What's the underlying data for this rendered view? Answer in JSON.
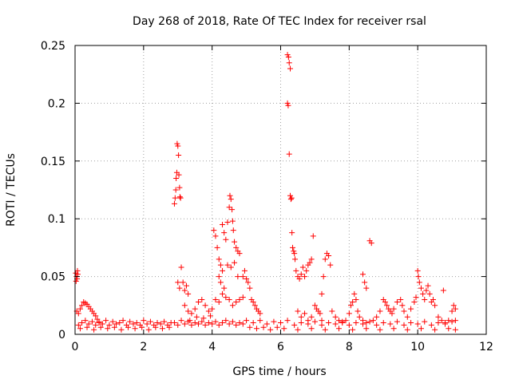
{
  "chart_data": {
    "type": "scatter",
    "title": "Day 268 of 2018, Rate Of TEC Index for receiver rsal",
    "xlabel": "GPS time / hours",
    "ylabel": "ROTI / TECUs",
    "xlim": [
      0,
      12
    ],
    "ylim": [
      0,
      0.25
    ],
    "xticks": [
      0,
      2,
      4,
      6,
      8,
      10,
      12
    ],
    "xtick_labels": [
      "0",
      "2",
      "4",
      "6",
      "8",
      "10",
      "12"
    ],
    "yticks": [
      0,
      0.05,
      0.1,
      0.15,
      0.2,
      0.25
    ],
    "ytick_labels": [
      "0",
      "0.05",
      "0.1",
      "0.15",
      "0.2",
      "0.25"
    ],
    "grid": true,
    "marker": "+",
    "color": "#ff0000",
    "series": [
      {
        "name": "ROTI",
        "points": [
          [
            0.02,
            0.053
          ],
          [
            0.04,
            0.05
          ],
          [
            0.06,
            0.048
          ],
          [
            0.08,
            0.052
          ],
          [
            0.03,
            0.046
          ],
          [
            0.07,
            0.055
          ],
          [
            0.05,
            0.02
          ],
          [
            0.1,
            0.018
          ],
          [
            0.15,
            0.022
          ],
          [
            0.2,
            0.025
          ],
          [
            0.25,
            0.028
          ],
          [
            0.3,
            0.027
          ],
          [
            0.35,
            0.026
          ],
          [
            0.4,
            0.024
          ],
          [
            0.45,
            0.022
          ],
          [
            0.5,
            0.02
          ],
          [
            0.55,
            0.018
          ],
          [
            0.6,
            0.016
          ],
          [
            0.65,
            0.013
          ],
          [
            0.7,
            0.011
          ],
          [
            0.1,
            0.008
          ],
          [
            0.2,
            0.01
          ],
          [
            0.3,
            0.012
          ],
          [
            0.4,
            0.009
          ],
          [
            0.5,
            0.011
          ],
          [
            0.6,
            0.008
          ],
          [
            0.7,
            0.01
          ],
          [
            0.8,
            0.009
          ],
          [
            0.9,
            0.012
          ],
          [
            1.0,
            0.008
          ],
          [
            1.1,
            0.011
          ],
          [
            1.2,
            0.009
          ],
          [
            1.3,
            0.01
          ],
          [
            1.4,
            0.012
          ],
          [
            1.5,
            0.008
          ],
          [
            1.6,
            0.011
          ],
          [
            1.7,
            0.009
          ],
          [
            1.8,
            0.01
          ],
          [
            1.9,
            0.008
          ],
          [
            2.0,
            0.012
          ],
          [
            2.1,
            0.009
          ],
          [
            2.2,
            0.011
          ],
          [
            2.3,
            0.008
          ],
          [
            2.4,
            0.01
          ],
          [
            2.5,
            0.009
          ],
          [
            2.6,
            0.011
          ],
          [
            2.7,
            0.008
          ],
          [
            2.8,
            0.01
          ],
          [
            0.15,
            0.005
          ],
          [
            0.35,
            0.006
          ],
          [
            0.55,
            0.004
          ],
          [
            0.75,
            0.006
          ],
          [
            0.95,
            0.005
          ],
          [
            1.15,
            0.006
          ],
          [
            1.35,
            0.004
          ],
          [
            1.55,
            0.006
          ],
          [
            1.75,
            0.005
          ],
          [
            1.95,
            0.006
          ],
          [
            2.15,
            0.004
          ],
          [
            2.35,
            0.006
          ],
          [
            2.55,
            0.005
          ],
          [
            2.75,
            0.006
          ],
          [
            2.9,
            0.113
          ],
          [
            2.92,
            0.118
          ],
          [
            2.94,
            0.125
          ],
          [
            2.95,
            0.135
          ],
          [
            2.97,
            0.14
          ],
          [
            2.98,
            0.165
          ],
          [
            3.0,
            0.163
          ],
          [
            3.02,
            0.155
          ],
          [
            3.03,
            0.138
          ],
          [
            3.05,
            0.127
          ],
          [
            3.06,
            0.119
          ],
          [
            3.08,
            0.118
          ],
          [
            3.1,
            0.058
          ],
          [
            3.15,
            0.045
          ],
          [
            3.2,
            0.038
          ],
          [
            3.25,
            0.042
          ],
          [
            3.3,
            0.035
          ],
          [
            3.0,
            0.045
          ],
          [
            3.05,
            0.04
          ],
          [
            3.2,
            0.025
          ],
          [
            3.3,
            0.02
          ],
          [
            3.4,
            0.018
          ],
          [
            3.5,
            0.022
          ],
          [
            3.6,
            0.028
          ],
          [
            3.7,
            0.03
          ],
          [
            3.8,
            0.025
          ],
          [
            3.9,
            0.02
          ],
          [
            4.0,
            0.022
          ],
          [
            3.35,
            0.012
          ],
          [
            3.55,
            0.015
          ],
          [
            3.75,
            0.014
          ],
          [
            3.95,
            0.016
          ],
          [
            4.05,
            0.09
          ],
          [
            4.1,
            0.085
          ],
          [
            4.15,
            0.075
          ],
          [
            4.2,
            0.065
          ],
          [
            4.25,
            0.06
          ],
          [
            4.3,
            0.095
          ],
          [
            4.35,
            0.088
          ],
          [
            4.4,
            0.082
          ],
          [
            4.45,
            0.097
          ],
          [
            4.5,
            0.11
          ],
          [
            4.52,
            0.12
          ],
          [
            4.55,
            0.117
          ],
          [
            4.58,
            0.108
          ],
          [
            4.6,
            0.098
          ],
          [
            4.62,
            0.09
          ],
          [
            4.65,
            0.08
          ],
          [
            4.7,
            0.075
          ],
          [
            4.75,
            0.072
          ],
          [
            4.8,
            0.07
          ],
          [
            4.2,
            0.05
          ],
          [
            4.25,
            0.045
          ],
          [
            4.3,
            0.055
          ],
          [
            4.35,
            0.04
          ],
          [
            4.45,
            0.06
          ],
          [
            4.55,
            0.058
          ],
          [
            4.65,
            0.062
          ],
          [
            4.75,
            0.05
          ],
          [
            4.1,
            0.03
          ],
          [
            4.2,
            0.028
          ],
          [
            4.3,
            0.035
          ],
          [
            4.4,
            0.032
          ],
          [
            4.5,
            0.03
          ],
          [
            4.6,
            0.025
          ],
          [
            4.7,
            0.028
          ],
          [
            4.8,
            0.03
          ],
          [
            4.9,
            0.032
          ],
          [
            4.9,
            0.05
          ],
          [
            4.95,
            0.055
          ],
          [
            5.0,
            0.048
          ],
          [
            5.05,
            0.045
          ],
          [
            5.1,
            0.04
          ],
          [
            5.15,
            0.03
          ],
          [
            5.2,
            0.028
          ],
          [
            5.25,
            0.025
          ],
          [
            5.3,
            0.022
          ],
          [
            5.35,
            0.02
          ],
          [
            5.4,
            0.018
          ],
          [
            5.0,
            0.012
          ],
          [
            5.2,
            0.01
          ],
          [
            5.4,
            0.012
          ],
          [
            5.6,
            0.009
          ],
          [
            5.8,
            0.011
          ],
          [
            6.0,
            0.01
          ],
          [
            6.2,
            0.012
          ],
          [
            5.1,
            0.006
          ],
          [
            5.3,
            0.005
          ],
          [
            5.5,
            0.006
          ],
          [
            5.7,
            0.004
          ],
          [
            5.9,
            0.006
          ],
          [
            6.1,
            0.005
          ],
          [
            6.2,
            0.242
          ],
          [
            6.23,
            0.24
          ],
          [
            6.25,
            0.235
          ],
          [
            6.28,
            0.23
          ],
          [
            6.2,
            0.2
          ],
          [
            6.22,
            0.198
          ],
          [
            6.25,
            0.156
          ],
          [
            6.28,
            0.12
          ],
          [
            6.3,
            0.117
          ],
          [
            6.32,
            0.118
          ],
          [
            6.33,
            0.088
          ],
          [
            6.35,
            0.075
          ],
          [
            6.38,
            0.072
          ],
          [
            6.4,
            0.07
          ],
          [
            6.42,
            0.065
          ],
          [
            6.45,
            0.055
          ],
          [
            6.5,
            0.05
          ],
          [
            6.55,
            0.048
          ],
          [
            6.6,
            0.052
          ],
          [
            6.65,
            0.058
          ],
          [
            6.7,
            0.05
          ],
          [
            6.75,
            0.055
          ],
          [
            6.8,
            0.06
          ],
          [
            6.85,
            0.062
          ],
          [
            6.9,
            0.065
          ],
          [
            6.95,
            0.085
          ],
          [
            6.5,
            0.02
          ],
          [
            6.6,
            0.015
          ],
          [
            6.7,
            0.018
          ],
          [
            6.8,
            0.012
          ],
          [
            6.9,
            0.015
          ],
          [
            7.0,
            0.025
          ],
          [
            7.05,
            0.022
          ],
          [
            7.1,
            0.02
          ],
          [
            7.15,
            0.018
          ],
          [
            7.2,
            0.012
          ],
          [
            7.2,
            0.035
          ],
          [
            7.25,
            0.05
          ],
          [
            7.3,
            0.065
          ],
          [
            7.35,
            0.07
          ],
          [
            7.4,
            0.068
          ],
          [
            7.45,
            0.06
          ],
          [
            7.5,
            0.02
          ],
          [
            7.6,
            0.015
          ],
          [
            7.7,
            0.012
          ],
          [
            7.8,
            0.01
          ],
          [
            7.9,
            0.012
          ],
          [
            8.0,
            0.018
          ],
          [
            8.05,
            0.025
          ],
          [
            8.1,
            0.028
          ],
          [
            8.15,
            0.035
          ],
          [
            8.2,
            0.03
          ],
          [
            8.25,
            0.02
          ],
          [
            8.3,
            0.015
          ],
          [
            8.4,
            0.012
          ],
          [
            8.5,
            0.01
          ],
          [
            8.4,
            0.052
          ],
          [
            8.45,
            0.045
          ],
          [
            8.5,
            0.04
          ],
          [
            8.6,
            0.081
          ],
          [
            8.65,
            0.079
          ],
          [
            8.7,
            0.012
          ],
          [
            8.8,
            0.015
          ],
          [
            8.9,
            0.02
          ],
          [
            9.0,
            0.03
          ],
          [
            9.05,
            0.028
          ],
          [
            9.1,
            0.025
          ],
          [
            9.15,
            0.022
          ],
          [
            9.2,
            0.02
          ],
          [
            9.25,
            0.018
          ],
          [
            9.3,
            0.022
          ],
          [
            9.4,
            0.028
          ],
          [
            9.5,
            0.03
          ],
          [
            9.55,
            0.025
          ],
          [
            9.6,
            0.02
          ],
          [
            9.7,
            0.015
          ],
          [
            9.8,
            0.022
          ],
          [
            9.9,
            0.028
          ],
          [
            9.95,
            0.032
          ],
          [
            10.0,
            0.055
          ],
          [
            10.02,
            0.05
          ],
          [
            10.05,
            0.045
          ],
          [
            10.1,
            0.04
          ],
          [
            10.15,
            0.035
          ],
          [
            10.2,
            0.03
          ],
          [
            10.25,
            0.038
          ],
          [
            10.3,
            0.042
          ],
          [
            10.35,
            0.035
          ],
          [
            10.4,
            0.028
          ],
          [
            10.45,
            0.03
          ],
          [
            10.5,
            0.025
          ],
          [
            10.6,
            0.015
          ],
          [
            10.7,
            0.012
          ],
          [
            10.75,
            0.038
          ],
          [
            10.8,
            0.01
          ],
          [
            10.9,
            0.012
          ],
          [
            11.0,
            0.02
          ],
          [
            11.05,
            0.025
          ],
          [
            11.1,
            0.022
          ],
          [
            11.1,
            0.012
          ],
          [
            6.4,
            0.008
          ],
          [
            6.6,
            0.01
          ],
          [
            6.8,
            0.009
          ],
          [
            7.0,
            0.011
          ],
          [
            7.2,
            0.008
          ],
          [
            7.4,
            0.01
          ],
          [
            7.6,
            0.009
          ],
          [
            7.8,
            0.011
          ],
          [
            8.0,
            0.008
          ],
          [
            8.2,
            0.01
          ],
          [
            8.4,
            0.009
          ],
          [
            8.6,
            0.011
          ],
          [
            8.8,
            0.008
          ],
          [
            9.0,
            0.01
          ],
          [
            9.2,
            0.009
          ],
          [
            9.4,
            0.011
          ],
          [
            9.6,
            0.008
          ],
          [
            9.8,
            0.01
          ],
          [
            10.0,
            0.009
          ],
          [
            10.2,
            0.011
          ],
          [
            10.4,
            0.008
          ],
          [
            10.6,
            0.01
          ],
          [
            10.8,
            0.009
          ],
          [
            11.0,
            0.011
          ],
          [
            6.5,
            0.004
          ],
          [
            6.9,
            0.005
          ],
          [
            7.3,
            0.004
          ],
          [
            7.7,
            0.005
          ],
          [
            8.1,
            0.004
          ],
          [
            8.5,
            0.005
          ],
          [
            8.9,
            0.004
          ],
          [
            9.3,
            0.005
          ],
          [
            9.7,
            0.004
          ],
          [
            10.1,
            0.005
          ],
          [
            10.5,
            0.004
          ],
          [
            10.9,
            0.005
          ],
          [
            11.1,
            0.004
          ],
          [
            2.9,
            0.01
          ],
          [
            3.0,
            0.008
          ],
          [
            3.1,
            0.012
          ],
          [
            3.2,
            0.009
          ],
          [
            3.3,
            0.011
          ],
          [
            3.4,
            0.008
          ],
          [
            3.5,
            0.01
          ],
          [
            3.6,
            0.009
          ],
          [
            3.7,
            0.011
          ],
          [
            3.8,
            0.008
          ],
          [
            3.9,
            0.01
          ],
          [
            4.0,
            0.009
          ],
          [
            4.1,
            0.011
          ],
          [
            4.2,
            0.008
          ],
          [
            4.3,
            0.01
          ],
          [
            4.4,
            0.012
          ],
          [
            4.5,
            0.009
          ],
          [
            4.6,
            0.011
          ],
          [
            4.7,
            0.008
          ],
          [
            4.8,
            0.01
          ],
          [
            4.9,
            0.009
          ]
        ]
      }
    ]
  }
}
